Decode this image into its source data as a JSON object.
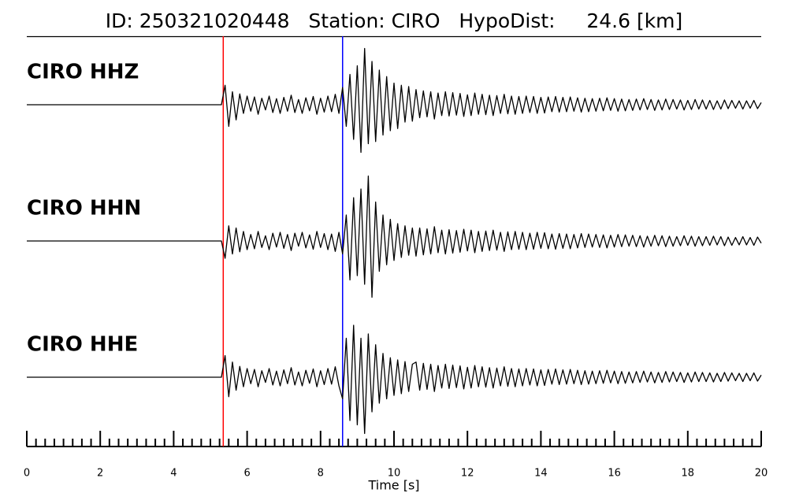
{
  "chart_data": {
    "type": "line",
    "title": "ID: 250321020448   Station: CIRO   HypoDist:     24.6 [km]",
    "xlabel": "Time [s]",
    "xlim": [
      0,
      20
    ],
    "xticks": [
      0,
      2,
      4,
      6,
      8,
      10,
      12,
      14,
      16,
      18,
      20
    ],
    "xminorticks": [
      0.25,
      0.5,
      0.75,
      1,
      1.25,
      1.5,
      1.75,
      2.25,
      2.5,
      2.75,
      3,
      3.25,
      3.5,
      3.75,
      4.25,
      4.5,
      4.75,
      5,
      5.25,
      5.5,
      5.75,
      6.25,
      6.5,
      6.75,
      7,
      7.25,
      7.5,
      7.75,
      8.25,
      8.5,
      8.75,
      9,
      9.25,
      9.5,
      9.75,
      10.25,
      10.5,
      10.75,
      11,
      11.25,
      11.5,
      11.75,
      12.25,
      12.5,
      12.75,
      13,
      13.25,
      13.5,
      13.75,
      14.25,
      14.5,
      14.75,
      15,
      15.25,
      15.5,
      15.75,
      16.25,
      16.5,
      16.75,
      17,
      17.25,
      17.5,
      17.75,
      18.25,
      18.5,
      18.75,
      19,
      19.25,
      19.5,
      19.75
    ],
    "label_color": "#4c9a00",
    "vlines": [
      {
        "x": 5.35,
        "color": "#ff0000"
      },
      {
        "x": 8.6,
        "color": "#0000ff"
      }
    ],
    "x": [
      0,
      0.1,
      0.2,
      0.3,
      0.4,
      0.5,
      0.6,
      0.7,
      0.8,
      0.9,
      1,
      1.1,
      1.2,
      1.3,
      1.4,
      1.5,
      1.6,
      1.7,
      1.8,
      1.9,
      2,
      2.1,
      2.2,
      2.3,
      2.4,
      2.5,
      2.6,
      2.7,
      2.8,
      2.9,
      3,
      3.1,
      3.2,
      3.3,
      3.4,
      3.5,
      3.6,
      3.7,
      3.8,
      3.9,
      4,
      4.1,
      4.2,
      4.3,
      4.4,
      4.5,
      4.6,
      4.7,
      4.8,
      4.9,
      5,
      5.1,
      5.2,
      5.3,
      5.4,
      5.5,
      5.6,
      5.7,
      5.8,
      5.9,
      6,
      6.1,
      6.2,
      6.3,
      6.4,
      6.5,
      6.6,
      6.7,
      6.8,
      6.9,
      7,
      7.1,
      7.2,
      7.3,
      7.4,
      7.5,
      7.6,
      7.7,
      7.8,
      7.9,
      8,
      8.1,
      8.2,
      8.3,
      8.4,
      8.5,
      8.6,
      8.7,
      8.8,
      8.9,
      9,
      9.1,
      9.2,
      9.3,
      9.4,
      9.5,
      9.6,
      9.7,
      9.8,
      9.9,
      10,
      10.1,
      10.2,
      10.3,
      10.4,
      10.5,
      10.6,
      10.7,
      10.8,
      10.9,
      11,
      11.1,
      11.2,
      11.3,
      11.4,
      11.5,
      11.6,
      11.7,
      11.8,
      11.9,
      12,
      12.1,
      12.2,
      12.3,
      12.4,
      12.5,
      12.6,
      12.7,
      12.8,
      12.9,
      13,
      13.1,
      13.2,
      13.3,
      13.4,
      13.5,
      13.6,
      13.7,
      13.8,
      13.9,
      14,
      14.1,
      14.2,
      14.3,
      14.4,
      14.5,
      14.6,
      14.7,
      14.8,
      14.9,
      15,
      15.1,
      15.2,
      15.3,
      15.4,
      15.5,
      15.6,
      15.7,
      15.8,
      15.9,
      16,
      16.1,
      16.2,
      16.3,
      16.4,
      16.5,
      16.6,
      16.7,
      16.8,
      16.9,
      17,
      17.1,
      17.2,
      17.3,
      17.4,
      17.5,
      17.6,
      17.7,
      17.8,
      17.9,
      18,
      18.1,
      18.2,
      18.3,
      18.4,
      18.5,
      18.6,
      18.7,
      18.8,
      18.9,
      19,
      19.1,
      19.2,
      19.3,
      19.4,
      19.5,
      19.6,
      19.7,
      19.8,
      19.9,
      20
    ],
    "series": [
      {
        "name": "CIRO HHZ",
        "color": "#000000",
        "values": [
          0,
          0,
          0,
          0,
          0,
          0,
          0,
          0,
          0,
          0,
          0,
          0,
          0,
          0,
          0,
          0,
          0,
          0,
          0,
          0,
          0,
          0,
          0,
          0,
          0,
          0,
          0,
          0,
          0,
          0,
          0,
          0,
          0,
          0,
          0,
          0,
          0,
          0,
          0,
          0,
          0,
          0,
          0,
          0,
          0,
          0,
          0,
          0,
          0,
          0,
          0,
          0,
          0,
          0,
          0.45,
          -0.5,
          0.3,
          -0.35,
          0.25,
          -0.2,
          0.2,
          -0.15,
          0.18,
          -0.22,
          0.15,
          -0.12,
          0.2,
          -0.18,
          0.14,
          -0.2,
          0.17,
          -0.15,
          0.22,
          -0.18,
          0.12,
          -0.2,
          0.16,
          -0.14,
          0.19,
          -0.22,
          0.15,
          -0.17,
          0.2,
          -0.16,
          0.24,
          -0.2,
          0.4,
          -0.5,
          0.7,
          -0.8,
          0.9,
          -1.1,
          1.3,
          -0.9,
          1.0,
          -0.85,
          0.8,
          -0.7,
          0.65,
          -0.6,
          0.5,
          -0.55,
          0.45,
          -0.4,
          0.42,
          -0.38,
          0.35,
          -0.3,
          0.32,
          -0.28,
          0.3,
          -0.33,
          0.27,
          -0.25,
          0.3,
          -0.26,
          0.28,
          -0.24,
          0.26,
          -0.27,
          0.23,
          -0.25,
          0.27,
          -0.22,
          0.24,
          -0.23,
          0.22,
          -0.25,
          0.21,
          -0.2,
          0.24,
          -0.21,
          0.2,
          -0.22,
          0.19,
          -0.2,
          0.2,
          -0.18,
          0.19,
          -0.2,
          0.17,
          -0.19,
          0.18,
          -0.16,
          0.19,
          -0.17,
          0.17,
          -0.16,
          0.18,
          -0.15,
          0.16,
          -0.17,
          0.15,
          -0.16,
          0.14,
          -0.15,
          0.15,
          -0.14,
          0.16,
          -0.13,
          0.14,
          -0.15,
          0.13,
          -0.14,
          0.12,
          -0.13,
          0.13,
          -0.12,
          0.14,
          -0.11,
          0.12,
          -0.13,
          0.11,
          -0.12,
          0.13,
          -0.11,
          0.12,
          -0.1,
          0.11,
          -0.12,
          0.1,
          -0.11,
          0.12,
          -0.1,
          0.11,
          -0.1,
          0.1,
          -0.11,
          0.09,
          -0.1,
          0.11,
          -0.09,
          0.1,
          -0.08,
          0.09,
          -0.1,
          0.09,
          -0.08,
          0.1,
          -0.09,
          0.05
        ]
      },
      {
        "name": "CIRO HHN",
        "color": "#000000",
        "values": [
          0,
          0,
          0,
          0,
          0,
          0,
          0,
          0,
          0,
          0,
          0,
          0,
          0,
          0,
          0,
          0,
          0,
          0,
          0,
          0,
          0,
          0,
          0,
          0,
          0,
          0,
          0,
          0,
          0,
          0,
          0,
          0,
          0,
          0,
          0,
          0,
          0,
          0,
          0,
          0,
          0,
          0,
          0,
          0,
          0,
          0,
          0,
          0,
          0,
          0,
          0,
          0,
          0,
          0,
          -0.4,
          0.35,
          -0.3,
          0.3,
          -0.25,
          0.22,
          -0.2,
          0.15,
          -0.18,
          0.22,
          -0.15,
          0.12,
          -0.2,
          0.18,
          -0.14,
          0.2,
          -0.17,
          0.15,
          -0.22,
          0.18,
          -0.12,
          0.2,
          -0.16,
          0.14,
          -0.19,
          0.22,
          -0.15,
          0.17,
          -0.2,
          0.16,
          -0.24,
          0.2,
          -0.3,
          0.6,
          -0.9,
          1.0,
          -0.8,
          1.2,
          -1.0,
          1.5,
          -1.3,
          0.9,
          -0.7,
          0.6,
          -0.55,
          0.5,
          -0.45,
          0.4,
          -0.38,
          0.35,
          -0.33,
          0.3,
          -0.35,
          0.3,
          -0.32,
          0.28,
          -0.3,
          0.33,
          -0.27,
          0.25,
          -0.3,
          0.26,
          -0.28,
          0.24,
          -0.26,
          0.27,
          -0.23,
          0.25,
          -0.27,
          0.22,
          -0.24,
          0.23,
          -0.22,
          0.25,
          -0.21,
          0.2,
          -0.24,
          0.21,
          -0.2,
          0.22,
          -0.19,
          0.2,
          -0.2,
          0.18,
          -0.19,
          0.2,
          -0.17,
          0.19,
          -0.18,
          0.16,
          -0.19,
          0.17,
          -0.17,
          0.16,
          -0.18,
          0.15,
          -0.16,
          0.17,
          -0.15,
          0.16,
          -0.14,
          0.15,
          -0.15,
          0.14,
          -0.16,
          0.13,
          -0.14,
          0.15,
          -0.13,
          0.14,
          -0.12,
          0.13,
          -0.13,
          0.12,
          -0.14,
          0.11,
          -0.12,
          0.13,
          -0.11,
          0.12,
          -0.13,
          0.11,
          -0.12,
          0.1,
          -0.11,
          0.12,
          -0.1,
          0.11,
          -0.12,
          0.1,
          -0.11,
          0.1,
          -0.1,
          0.11,
          -0.09,
          0.1,
          -0.11,
          0.09,
          -0.1,
          0.08,
          -0.09,
          0.1,
          -0.09,
          0.08,
          -0.1,
          0.09,
          -0.05
        ]
      },
      {
        "name": "CIRO HHE",
        "color": "#000000",
        "values": [
          0,
          0,
          0,
          0,
          0,
          0,
          0,
          0,
          0,
          0,
          0,
          0,
          0,
          0,
          0,
          0,
          0,
          0,
          0,
          0,
          0,
          0,
          0,
          0,
          0,
          0,
          0,
          0,
          0,
          0,
          0,
          0,
          0,
          0,
          0,
          0,
          0,
          0,
          0,
          0,
          0,
          0,
          0,
          0,
          0,
          0,
          0,
          0,
          0,
          0,
          0,
          0,
          0,
          0,
          0.5,
          -0.45,
          0.35,
          -0.3,
          0.25,
          -0.22,
          0.2,
          -0.15,
          0.18,
          -0.22,
          0.15,
          -0.12,
          0.2,
          -0.18,
          0.14,
          -0.2,
          0.17,
          -0.15,
          0.22,
          -0.18,
          0.12,
          -0.2,
          0.16,
          -0.14,
          0.19,
          -0.22,
          0.15,
          -0.17,
          0.2,
          -0.16,
          0.24,
          -0.2,
          -0.5,
          0.9,
          -1.0,
          1.2,
          -1.1,
          0.9,
          -1.3,
          1.0,
          -0.8,
          0.75,
          -0.6,
          0.55,
          -0.5,
          0.45,
          -0.42,
          0.4,
          -0.38,
          0.36,
          -0.33,
          0.3,
          0.35,
          -0.3,
          0.32,
          -0.28,
          0.3,
          -0.33,
          0.27,
          -0.25,
          0.3,
          -0.26,
          0.28,
          -0.24,
          0.26,
          -0.27,
          0.23,
          -0.25,
          0.27,
          -0.22,
          0.24,
          -0.23,
          0.22,
          -0.25,
          0.21,
          -0.2,
          0.24,
          -0.21,
          0.2,
          -0.22,
          0.19,
          -0.2,
          0.2,
          -0.18,
          0.19,
          -0.2,
          0.17,
          -0.19,
          0.18,
          -0.16,
          0.19,
          -0.17,
          0.17,
          -0.16,
          0.18,
          -0.15,
          0.16,
          -0.17,
          0.15,
          -0.16,
          0.14,
          -0.15,
          0.15,
          -0.14,
          0.16,
          -0.13,
          0.14,
          -0.15,
          0.13,
          -0.14,
          0.12,
          -0.13,
          0.13,
          -0.12,
          0.14,
          -0.11,
          0.12,
          -0.13,
          0.11,
          -0.12,
          0.13,
          -0.11,
          0.12,
          -0.1,
          0.11,
          -0.12,
          0.1,
          -0.11,
          0.12,
          -0.1,
          0.11,
          -0.1,
          0.1,
          -0.11,
          0.09,
          -0.1,
          0.11,
          -0.09,
          0.1,
          -0.08,
          0.09,
          -0.1,
          0.09,
          -0.08,
          0.1,
          -0.09,
          0.05
        ]
      }
    ]
  }
}
